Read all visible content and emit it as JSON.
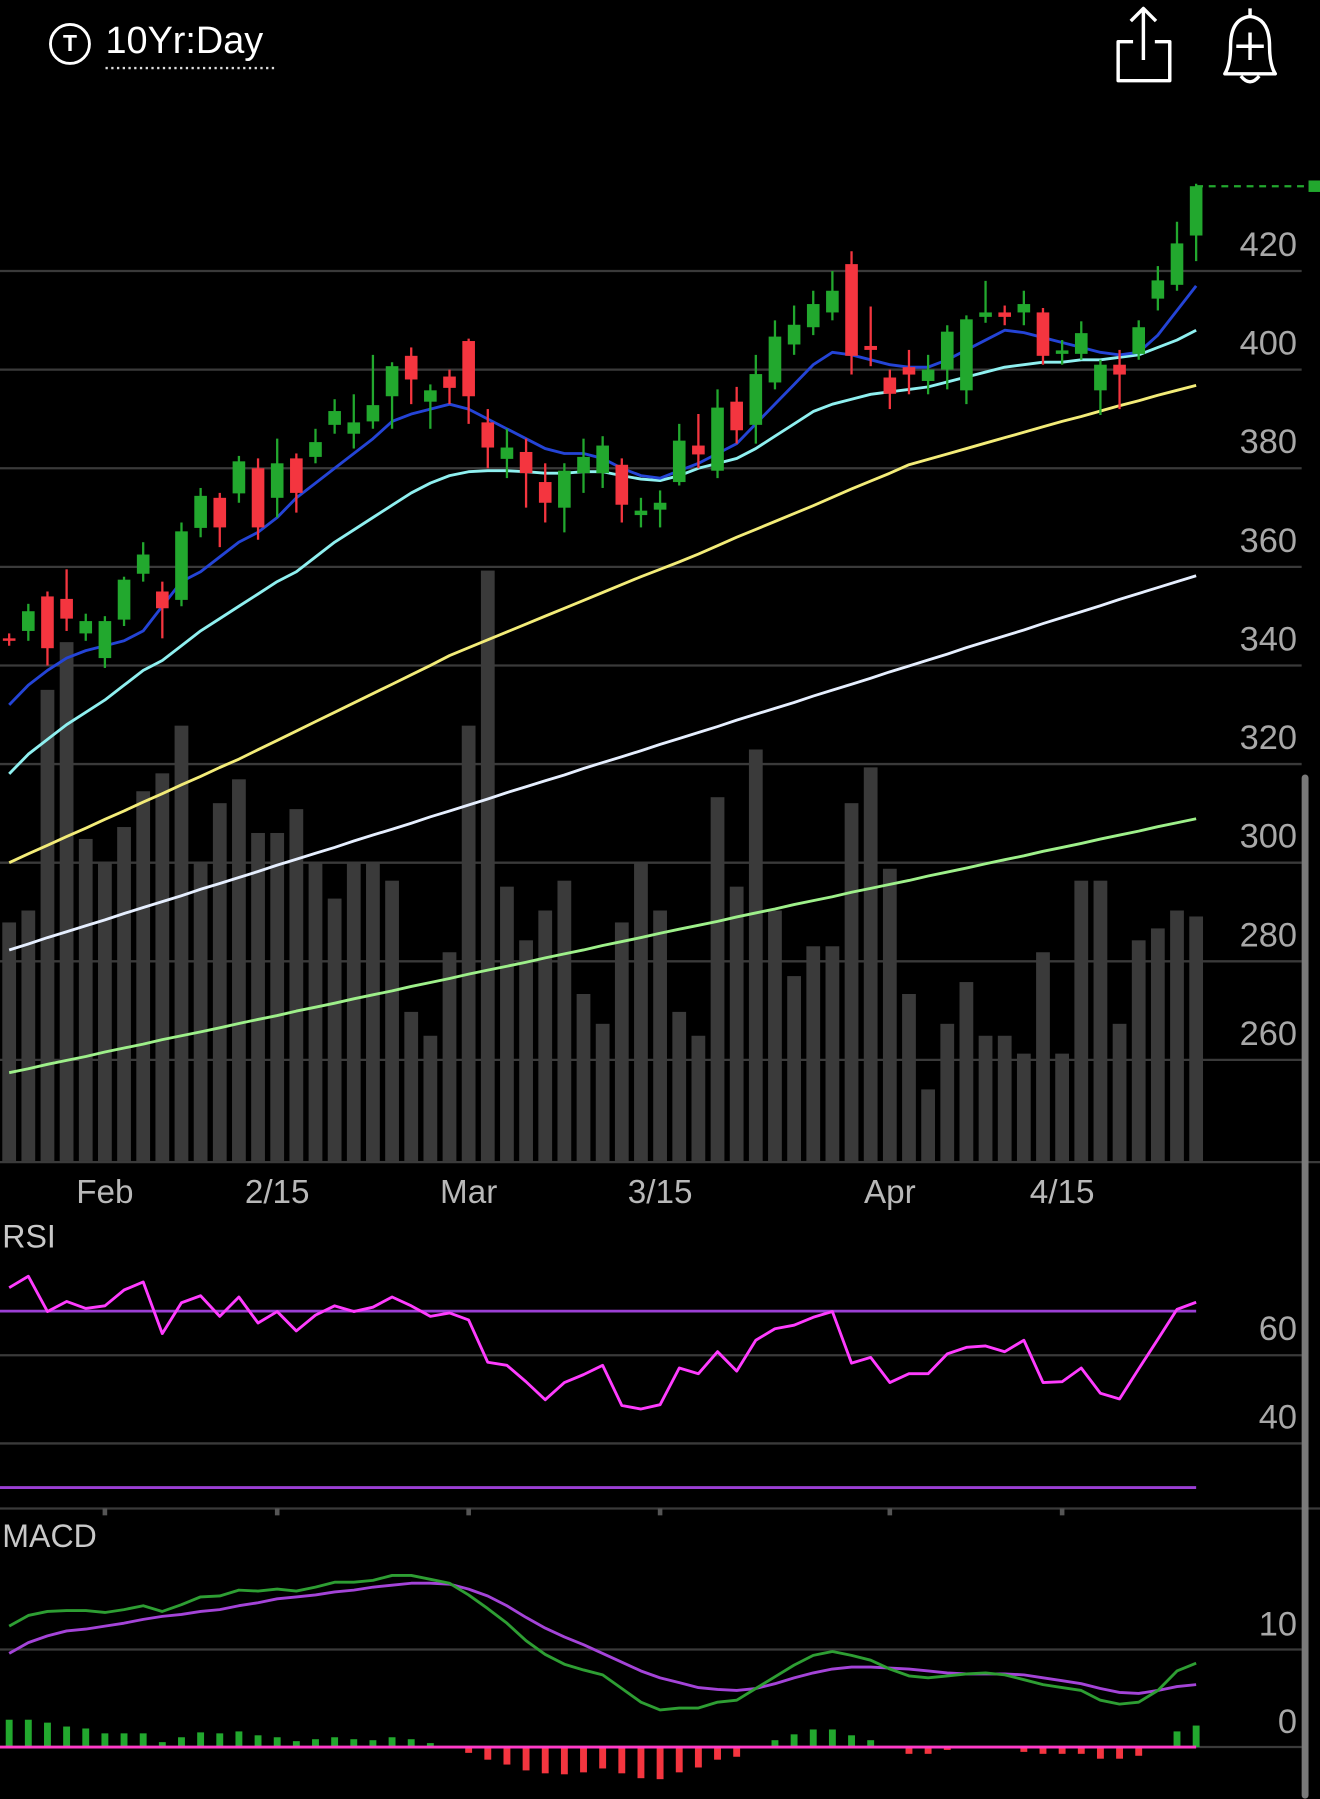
{
  "header": {
    "badge": "T",
    "title": "10Yr:Day"
  },
  "chart_data": [
    {
      "type": "candlestick",
      "categories": [
        null,
        null,
        null,
        null,
        null,
        "Feb",
        null,
        null,
        null,
        null,
        null,
        null,
        null,
        null,
        "2/15",
        null,
        null,
        null,
        null,
        null,
        null,
        null,
        null,
        null,
        "Mar",
        null,
        null,
        null,
        null,
        null,
        null,
        null,
        null,
        null,
        "3/15",
        null,
        null,
        null,
        null,
        null,
        null,
        null,
        null,
        null,
        null,
        null,
        "Apr",
        null,
        null,
        null,
        null,
        null,
        null,
        null,
        null,
        "4/15",
        null,
        null,
        null,
        null,
        null,
        null,
        null
      ],
      "open": [
        345.5,
        347,
        354,
        353.5,
        346.5,
        341.5,
        349.3,
        358.6,
        355,
        353.3,
        367.9,
        374,
        374.9,
        380,
        374,
        382,
        382.3,
        388.8,
        387,
        389.5,
        394.6,
        402.8,
        393.5,
        398.6,
        405.8,
        389.3,
        381.9,
        383.3,
        377.2,
        372,
        379,
        379,
        380.7,
        370.5,
        371.6,
        377.2,
        384.6,
        379.5,
        393.5,
        388.8,
        397.4,
        405.1,
        408.6,
        411.6,
        421.4,
        404.8,
        398.4,
        400.5,
        397.7,
        400,
        395.8,
        410.7,
        411.6,
        411.6,
        411.6,
        403.2,
        403.2,
        395.8,
        401,
        403.2,
        414.4,
        417.2,
        427.2
      ],
      "high": [
        346.5,
        352.5,
        355,
        359.5,
        350.5,
        350,
        358,
        365,
        357,
        369,
        376,
        375,
        382.5,
        382,
        386,
        383,
        388,
        394,
        395,
        403,
        401.5,
        404.5,
        397,
        400,
        406.3,
        392,
        388,
        386,
        381,
        381,
        386,
        386.5,
        382,
        374,
        375.5,
        389,
        391,
        396,
        396.5,
        403,
        410,
        413,
        416,
        420,
        424,
        412.8,
        400,
        404,
        403,
        409,
        411,
        418,
        413,
        416,
        412.5,
        406,
        409.8,
        402,
        404,
        410,
        421,
        430,
        437.7
      ],
      "low": [
        344,
        345,
        340,
        347,
        345,
        339.5,
        348,
        357,
        345.5,
        352,
        366,
        364,
        373,
        365.5,
        370,
        371,
        381,
        387,
        384,
        388,
        388,
        393,
        388,
        393,
        389,
        380,
        378,
        372,
        369,
        367,
        375,
        376,
        369,
        368,
        368,
        376.5,
        380,
        378,
        385,
        385,
        396,
        403,
        407,
        410,
        399,
        400.7,
        392,
        395,
        395,
        396,
        393,
        409.5,
        409,
        409,
        401,
        401,
        402,
        390.8,
        392,
        402,
        412,
        416,
        422
      ],
      "close": [
        345,
        351,
        343.5,
        349.5,
        349,
        349,
        357.4,
        362.5,
        351.6,
        367.2,
        374.4,
        368,
        381.4,
        368,
        381,
        375,
        385.3,
        391.6,
        389.3,
        392.8,
        400.7,
        398,
        395.8,
        396.3,
        394.6,
        384.2,
        384.2,
        379,
        373,
        379.5,
        382.3,
        384.6,
        372.6,
        371.4,
        373,
        385.6,
        382.8,
        392.3,
        387.7,
        399.1,
        406.7,
        409.1,
        413.3,
        416,
        402.8,
        404,
        395.1,
        399,
        400,
        407.7,
        410.2,
        411.6,
        410.7,
        413.3,
        402.8,
        403.9,
        407.4,
        401,
        399,
        408.6,
        418.1,
        425.6,
        437.2
      ],
      "up_color": "#22a82e",
      "down_color": "#f4353f",
      "ylim": [
        239.5,
        440
      ],
      "yticks": [
        260,
        280,
        300,
        320,
        340,
        360,
        380,
        400,
        420
      ],
      "grid": true,
      "series": [
        {
          "color": "#9ef08a",
          "values": [
            257.4,
            258.2,
            259.1,
            259.9,
            260.7,
            261.6,
            262.4,
            263.2,
            264.1,
            264.9,
            265.7,
            266.5,
            267.4,
            268.2,
            269,
            269.9,
            270.7,
            271.5,
            272.4,
            273.2,
            274,
            274.9,
            275.7,
            276.5,
            277.4,
            278.2,
            279,
            279.8,
            280.7,
            281.5,
            282.3,
            283.2,
            284,
            284.8,
            285.7,
            286.5,
            287.3,
            288.1,
            289,
            289.8,
            290.6,
            291.5,
            292.3,
            293.1,
            294,
            294.8,
            295.6,
            296.4,
            297.3,
            298.1,
            298.9,
            299.8,
            300.6,
            301.4,
            302.3,
            303.1,
            303.9,
            304.8,
            305.6,
            306.4,
            307.3,
            308.1,
            308.9
          ]
        },
        {
          "color": "#e6efff",
          "values": [
            282.3,
            283.5,
            284.8,
            286,
            287.2,
            288.4,
            289.7,
            290.9,
            292.1,
            293.3,
            294.6,
            295.8,
            297,
            298.2,
            299.5,
            300.7,
            301.9,
            303.1,
            304.4,
            305.6,
            306.8,
            308,
            309.3,
            310.5,
            311.7,
            312.9,
            314.2,
            315.4,
            316.6,
            317.8,
            319.1,
            320.3,
            321.5,
            322.7,
            324,
            325.2,
            326.4,
            327.6,
            328.9,
            330.1,
            331.3,
            332.5,
            333.8,
            335,
            336.2,
            337.4,
            338.7,
            339.9,
            341.1,
            342.3,
            343.6,
            344.8,
            346,
            347.2,
            348.5,
            349.7,
            350.9,
            352.1,
            353.4,
            354.6,
            355.8,
            357,
            358.2
          ]
        },
        {
          "color": "#f3ec78",
          "values": [
            300,
            301.8,
            303.5,
            305.3,
            307,
            308.8,
            310.5,
            312.3,
            314,
            315.8,
            317.5,
            319.3,
            321,
            322.9,
            324.8,
            326.7,
            328.6,
            330.5,
            332.4,
            334.3,
            336.2,
            338.1,
            340,
            342,
            343.6,
            345.2,
            346.8,
            348.4,
            350,
            351.6,
            353.2,
            354.8,
            356.4,
            358,
            359.5,
            361,
            362.6,
            364.3,
            366,
            367.6,
            369.2,
            370.8,
            372.4,
            374.1,
            375.8,
            377.4,
            379,
            380.7,
            381.8,
            382.9,
            384,
            385.1,
            386.2,
            387.3,
            388.4,
            389.5,
            390.5,
            391.6,
            392.7,
            393.7,
            394.8,
            395.8,
            396.8
          ]
        },
        {
          "color": "#8ff0f0",
          "values": [
            318,
            322,
            325,
            328,
            330.5,
            333,
            336,
            339,
            341,
            344,
            347,
            349.5,
            352,
            354.5,
            357,
            359,
            362,
            365,
            367.5,
            370,
            372.5,
            375,
            377,
            378.5,
            379.3,
            379.5,
            379.5,
            379.3,
            379,
            379,
            379.3,
            379.3,
            378.5,
            377.8,
            377.5,
            378.5,
            380,
            381,
            382,
            384,
            386.5,
            389,
            391.5,
            393,
            394,
            395,
            395.5,
            396,
            396.5,
            397.5,
            398.5,
            399.5,
            400.5,
            401,
            401.5,
            401.5,
            402,
            402,
            402.5,
            403,
            404.5,
            406,
            408
          ]
        },
        {
          "color": "#2444d6",
          "values": [
            332,
            336,
            339,
            341.5,
            343,
            344,
            345,
            347,
            352,
            357,
            359,
            362,
            365,
            367,
            370,
            374,
            377,
            380,
            383,
            386,
            389.5,
            391,
            392,
            393,
            392,
            390,
            388,
            386,
            384,
            383,
            383,
            382,
            380,
            378.5,
            378,
            379.5,
            381,
            383,
            385,
            389,
            393,
            397,
            401,
            403.5,
            403,
            402,
            401,
            400.5,
            400.5,
            402,
            404,
            406,
            408,
            407.5,
            406.5,
            405.5,
            404.5,
            403.5,
            403,
            403.5,
            407,
            412,
            417
          ]
        }
      ],
      "volume": {
        "color": "#3a3a3a",
        "ylim": [
          0,
          100
        ],
        "values": [
          40,
          42,
          79,
          87,
          54,
          50,
          56,
          62,
          65,
          73,
          50,
          60,
          64,
          55,
          55,
          59,
          50,
          44,
          50,
          50,
          47,
          25,
          21,
          35,
          73,
          99,
          46,
          37,
          42,
          47,
          28,
          23,
          40,
          50,
          42,
          25,
          21,
          61,
          46,
          69,
          42,
          31,
          36,
          36,
          60,
          66,
          49,
          28,
          12,
          23,
          30,
          21,
          21,
          18,
          35,
          18,
          47,
          47,
          23,
          37,
          39,
          42,
          41
        ]
      },
      "last_price_color": "#22a82e"
    },
    {
      "type": "line",
      "title": "RSI",
      "color": "#ff3cff",
      "values": [
        75.3,
        77.9,
        69.9,
        72.2,
        70.6,
        71.2,
        74.8,
        76.6,
        64.9,
        71.9,
        73.5,
        68.8,
        73.2,
        67.3,
        69.9,
        65.5,
        69.1,
        71.2,
        69.9,
        70.9,
        73.2,
        71.2,
        68.8,
        69.6,
        68,
        58.4,
        57.7,
        54,
        49.9,
        53.8,
        55.6,
        57.7,
        48.6,
        47.8,
        48.8,
        57.1,
        55.8,
        60.8,
        56.4,
        63.4,
        66,
        66.8,
        68.6,
        69.9,
        58.2,
        59.5,
        53.8,
        55.8,
        55.8,
        60.3,
        61.8,
        62.1,
        60.8,
        63.4,
        53.8,
        54,
        57.1,
        51.4,
        50.1,
        56.9,
        63.6,
        70.4,
        72
      ],
      "levels": [
        70,
        30
      ],
      "level_color": "#9b3fd4",
      "ylim": [
        25,
        90
      ],
      "yticks": [
        40,
        60
      ],
      "grid": true
    },
    {
      "type": "macd",
      "title": "MACD",
      "macd": [
        12.4,
        13.5,
        13.9,
        14,
        14,
        13.8,
        14.1,
        14.5,
        13.9,
        14.6,
        15.4,
        15.5,
        16.1,
        16,
        16.2,
        16,
        16.4,
        16.9,
        16.9,
        17.1,
        17.6,
        17.6,
        17.2,
        16.8,
        15.6,
        14.2,
        12.7,
        10.9,
        9.5,
        8.5,
        7.9,
        7.4,
        6,
        4.6,
        3.8,
        4,
        4,
        4.6,
        4.8,
        6,
        7.2,
        8.4,
        9.4,
        9.8,
        9.4,
        8.9,
        8,
        7.3,
        7.1,
        7.3,
        7.5,
        7.6,
        7.4,
        6.9,
        6.4,
        6.1,
        5.8,
        4.8,
        4.4,
        4.6,
        5.8,
        7.8,
        8.6
      ],
      "signal": [
        9.6,
        10.7,
        11.4,
        11.9,
        12.1,
        12.4,
        12.7,
        13.1,
        13.4,
        13.6,
        13.9,
        14.1,
        14.5,
        14.8,
        15.2,
        15.4,
        15.6,
        15.9,
        16.1,
        16.4,
        16.6,
        16.8,
        16.8,
        16.7,
        16.2,
        15.5,
        14.5,
        13.3,
        12.2,
        11.3,
        10.5,
        9.6,
        8.7,
        7.8,
        7.1,
        6.6,
        6.1,
        5.9,
        5.8,
        6,
        6.5,
        7.1,
        7.6,
        8,
        8.2,
        8.2,
        8.1,
        8,
        7.8,
        7.6,
        7.5,
        7.5,
        7.5,
        7.4,
        7.1,
        6.8,
        6.5,
        6,
        5.6,
        5.5,
        5.8,
        6.2,
        6.4
      ],
      "histogram": [
        2.8,
        2.8,
        2.5,
        2.1,
        1.9,
        1.4,
        1.4,
        1.4,
        0.5,
        1,
        1.5,
        1.4,
        1.6,
        1.2,
        1,
        0.6,
        0.8,
        1,
        0.8,
        0.7,
        1,
        0.8,
        0.4,
        0.1,
        -0.6,
        -1.3,
        -1.8,
        -2.4,
        -2.7,
        -2.8,
        -2.6,
        -2.2,
        -2.7,
        -3.2,
        -3.3,
        -2.6,
        -2.1,
        -1.3,
        -1,
        0,
        0.7,
        1.3,
        1.8,
        1.8,
        1.2,
        0.7,
        -0.1,
        -0.7,
        -0.7,
        -0.3,
        0,
        0.1,
        -0.1,
        -0.5,
        -0.7,
        -0.7,
        -0.7,
        -1.2,
        -1.2,
        -0.9,
        0,
        1.6,
        2.2
      ],
      "macd_color": "#2e9e33",
      "signal_color": "#a444d8",
      "up_color": "#22a82e",
      "down_color": "#f4353f",
      "zero_color": "#ff3cc8",
      "ylim": [
        -5,
        23
      ],
      "yticks": [
        0,
        10
      ],
      "grid": true
    }
  ]
}
